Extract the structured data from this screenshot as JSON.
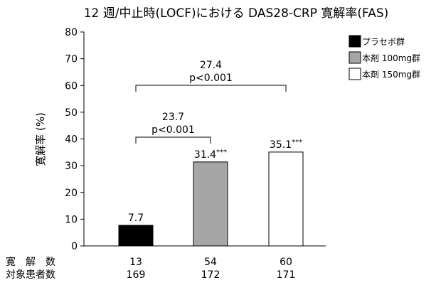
{
  "chart_data": {
    "type": "bar",
    "title": "12 週/中止時(LOCF)における DAS28-CRP 寛解率(FAS)",
    "ylabel": "寛解率 (%)",
    "ylim": [
      0,
      80
    ],
    "yticks": [
      "0",
      "10",
      "20",
      "30",
      "40",
      "50",
      "60",
      "70",
      "80"
    ],
    "grid": false,
    "legend_position": "right",
    "categories": [
      "プラセボ群",
      "本剤 100mg群",
      "本剤 150mg群"
    ],
    "values": [
      7.7,
      31.4,
      35.1
    ],
    "value_labels": [
      "7.7",
      "31.4",
      "35.1"
    ],
    "significance_marks": [
      "",
      "***",
      "***"
    ],
    "colors": [
      "#000000",
      "#a6a6a6",
      "#ffffff"
    ],
    "comparisons": [
      {
        "from": 0,
        "to": 1,
        "difference": "23.7",
        "p": "p<0.001"
      },
      {
        "from": 0,
        "to": 2,
        "difference": "27.4",
        "p": "p<0.001"
      }
    ],
    "table": {
      "rows": [
        {
          "label": "寛　解　数",
          "values": [
            "13",
            "54",
            "60"
          ]
        },
        {
          "label": "対象患者数",
          "values": [
            "169",
            "172",
            "171"
          ]
        }
      ]
    }
  }
}
